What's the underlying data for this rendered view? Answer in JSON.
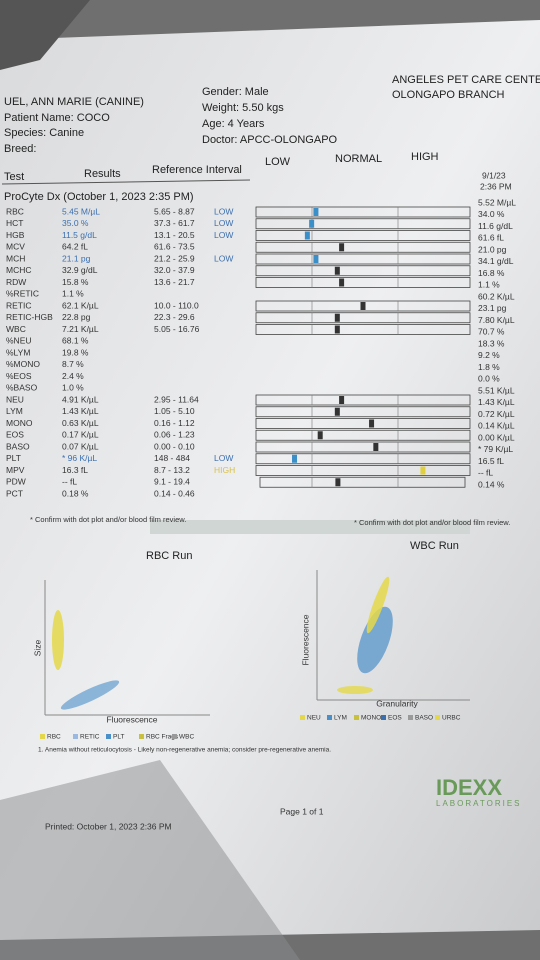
{
  "header": {
    "clinic": "ANGELES PET CARE CENTE",
    "branch": "OLONGAPO BRANCH",
    "owner": "UEL, ANN MARIE (CANINE)",
    "patient": "Patient Name: COCO",
    "species": "Species: Canine",
    "breed": "Breed:",
    "gender": "Gender: Male",
    "weight": "Weight: 5.50 kgs",
    "age": "Age: 4 Years",
    "doctor": "Doctor: APCC-OLONGAPO"
  },
  "columns": {
    "test": "Test",
    "results": "Results",
    "reference": "Reference Interval",
    "low": "LOW",
    "normal": "NORMAL",
    "high": "HIGH",
    "date": "9/1/23",
    "time": "2:36 PM"
  },
  "section": "ProCyte Dx (October 1, 2023 2:35 PM)",
  "rows": [
    {
      "test": "RBC",
      "result": "5.45 M/µL",
      "ref": "5.65 - 8.87",
      "flag": "LOW",
      "prior": "5.52 M/µL"
    },
    {
      "test": "HCT",
      "result": "35.0 %",
      "ref": "37.3 - 61.7",
      "flag": "LOW",
      "prior": "34.0 %"
    },
    {
      "test": "HGB",
      "result": "11.5 g/dL",
      "ref": "13.1 - 20.5",
      "flag": "LOW",
      "prior": "11.6 g/dL"
    },
    {
      "test": "MCV",
      "result": "64.2 fL",
      "ref": "61.6 - 73.5",
      "prior": "61.6 fL"
    },
    {
      "test": "MCH",
      "result": "21.1 pg",
      "ref": "21.2 - 25.9",
      "flag": "LOW",
      "prior": "21.0 pg"
    },
    {
      "test": "MCHC",
      "result": "32.9 g/dL",
      "ref": "32.0 - 37.9",
      "prior": "34.1 g/dL"
    },
    {
      "test": "RDW",
      "result": "15.8 %",
      "ref": "13.6 - 21.7",
      "prior": "16.8 %"
    },
    {
      "test": "%RETIC",
      "result": "1.1 %",
      "prior": "1.1 %"
    },
    {
      "test": "RETIC",
      "result": "62.1 K/µL",
      "ref": "10.0 - 110.0",
      "prior": "60.2 K/µL"
    },
    {
      "test": "RETIC-HGB",
      "result": "22.8 pg",
      "ref": "22.3 - 29.6",
      "prior": "23.1 pg"
    },
    {
      "test": "WBC",
      "result": "7.21 K/µL",
      "ref": "5.05 - 16.76",
      "prior": "7.80 K/µL"
    },
    {
      "test": "%NEU",
      "result": "68.1 %",
      "prior": "70.7 %"
    },
    {
      "test": "%LYM",
      "result": "19.8 %",
      "prior": "18.3 %"
    },
    {
      "test": "%MONO",
      "result": "8.7 %",
      "prior": "9.2 %"
    },
    {
      "test": "%EOS",
      "result": "2.4 %",
      "prior": "1.8 %"
    },
    {
      "test": "%BASO",
      "result": "1.0 %",
      "prior": "0.0 %"
    },
    {
      "test": "NEU",
      "result": "4.91 K/µL",
      "ref": "2.95 - 11.64",
      "prior": "5.51 K/µL"
    },
    {
      "test": "LYM",
      "result": "1.43 K/µL",
      "ref": "1.05 - 5.10",
      "prior": "1.43 K/µL"
    },
    {
      "test": "MONO",
      "result": "0.63 K/µL",
      "ref": "0.16 - 1.12",
      "prior": "0.72 K/µL"
    },
    {
      "test": "EOS",
      "result": "0.17 K/µL",
      "ref": "0.06 - 1.23",
      "prior": "0.14 K/µL"
    },
    {
      "test": "BASO",
      "result": "0.07 K/µL",
      "ref": "0.00 - 0.10",
      "prior": "0.00 K/µL"
    },
    {
      "test": "PLT",
      "result": "* 96 K/µL",
      "ref": "148 - 484",
      "flag": "LOW",
      "prior": "* 79 K/µL"
    },
    {
      "test": "MPV",
      "result": "16.3 fL",
      "ref": "8.7 - 13.2",
      "flag": "HIGH",
      "prior": "16.5 fL"
    },
    {
      "test": "PDW",
      "result": "-- fL",
      "ref": "9.1 - 19.4",
      "prior": "-- fL"
    },
    {
      "test": "PCT",
      "result": "0.18 %",
      "ref": "0.14 - 0.46",
      "prior": "0.14 %"
    }
  ],
  "notes": {
    "left": "* Confirm with dot plot and/or blood film review.",
    "right": "* Confirm with dot plot and/or blood film review."
  },
  "rbc_run": {
    "title": "RBC Run",
    "y_label": "Size",
    "x_label": "Fluorescence",
    "legend": [
      "RBC",
      "RETIC",
      "PLT",
      "RBC Frags",
      "WBC"
    ]
  },
  "wbc_run": {
    "title": "WBC Run",
    "y_label": "Fluorescence",
    "x_label": "Granularity",
    "legend": [
      "NEU",
      "LYM",
      "MONO",
      "EOS",
      "BASO",
      "URBC"
    ]
  },
  "footnote": "1. Anemia without reticulocytosis - Likely non-regenerative anemia; consider pre-regenerative anemia.",
  "printed": "Printed: October 1, 2023 2:36 PM",
  "page": "Page 1 of 1",
  "brand": "IDEXX",
  "brand_sub": "LABORATORIES"
}
